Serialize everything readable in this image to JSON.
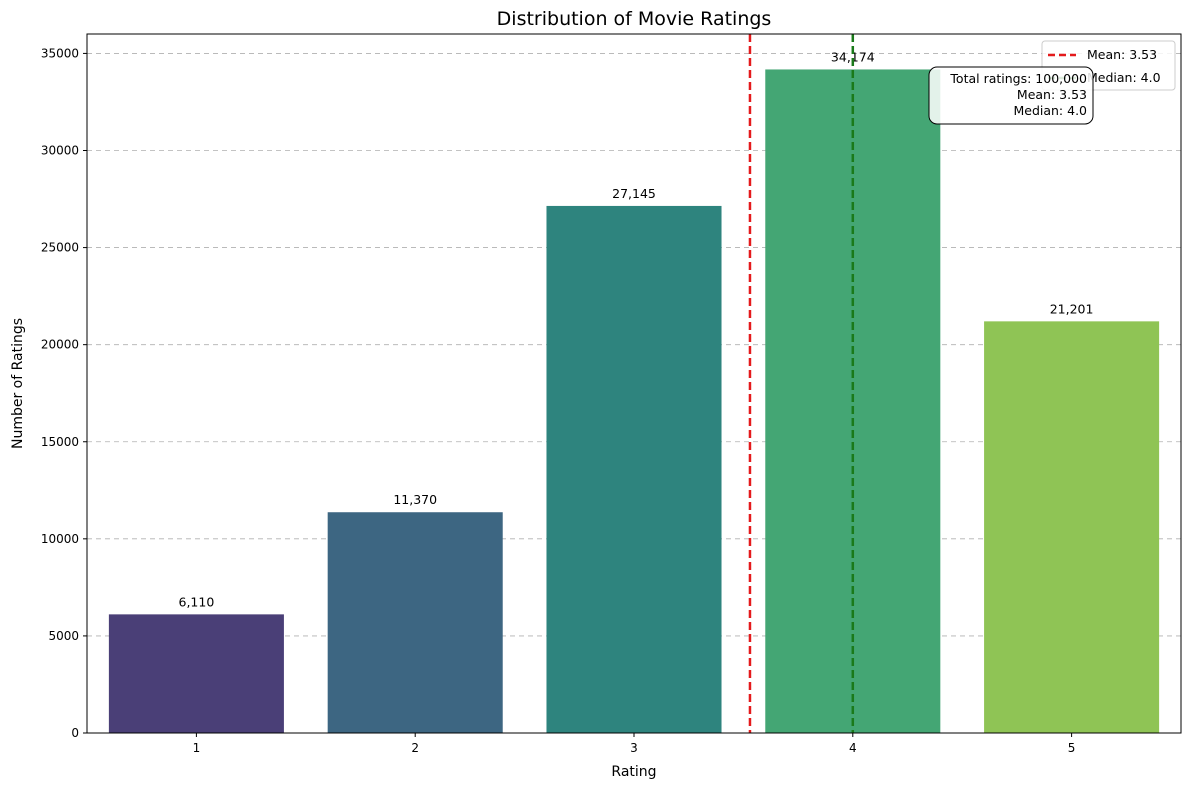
{
  "chart_data": {
    "type": "bar",
    "title": "Distribution of Movie Ratings",
    "xlabel": "Rating",
    "ylabel": "Number of Ratings",
    "categories": [
      "1",
      "2",
      "3",
      "4",
      "5"
    ],
    "values": [
      6110,
      11370,
      27145,
      34174,
      21201
    ],
    "value_labels": [
      "6,110",
      "11,370",
      "27,145",
      "34,174",
      "21,201"
    ],
    "bar_colors": [
      "#4a3f77",
      "#3d6682",
      "#2e847e",
      "#44a674",
      "#8fc455"
    ],
    "ylim": [
      0,
      36000
    ],
    "yticks": [
      0,
      5000,
      10000,
      15000,
      20000,
      25000,
      30000,
      35000
    ],
    "grid": "y-dashed",
    "reference_lines": [
      {
        "label": "Mean: 3.53",
        "x": 3.53,
        "color": "#e41a1c",
        "style": "dashed"
      },
      {
        "label": "Median: 4.0",
        "x": 4.0,
        "color": "#1a7a1a",
        "style": "dashed"
      }
    ],
    "legend_position": "top-right",
    "stats_box": [
      "Total ratings: 100,000",
      "Mean: 3.53",
      "Median: 4.0"
    ]
  }
}
